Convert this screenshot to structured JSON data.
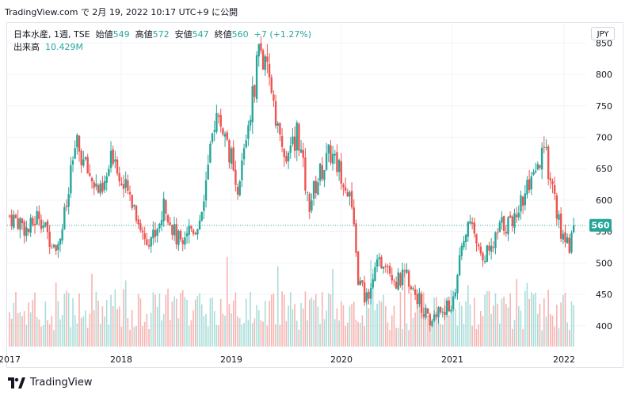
{
  "caption": "TradingView.com で 2月 19, 2022 10:17 UTC+9 に公開",
  "legend": {
    "symbol": "日本水産, 1週, TSE",
    "open_label": "始値",
    "open": "549",
    "high_label": "高値",
    "high": "572",
    "low_label": "安値",
    "low": "547",
    "close_label": "終値",
    "close": "560",
    "change": "+7 (+1.27%)",
    "volume_label": "出来高",
    "volume": "10.429M"
  },
  "currency_button": "JPY",
  "footer": {
    "brand": "TradingView",
    "logo_icon": "tradingview-logo-icon"
  },
  "colors": {
    "up": "#26a69a",
    "down": "#ef5350",
    "vol_up": "#a9ddd8",
    "vol_down": "#f7b3b1",
    "grid": "#f0f3fa",
    "axis_text": "#131722"
  },
  "chart_data": {
    "type": "candlestick",
    "interval": "weekly",
    "x_tick_labels": [
      "2017",
      "2018",
      "2019",
      "2020",
      "2021",
      "2022"
    ],
    "y_tick_labels": [
      400,
      450,
      500,
      550,
      600,
      650,
      700,
      750,
      800,
      850
    ],
    "ylim": [
      350,
      870
    ],
    "last_price": 560,
    "grid": true,
    "price_path_anchors": [
      [
        2016.98,
        575
      ],
      [
        2017.08,
        565
      ],
      [
        2017.15,
        550
      ],
      [
        2017.25,
        580
      ],
      [
        2017.32,
        545
      ],
      [
        2017.42,
        530
      ],
      [
        2017.5,
        590
      ],
      [
        2017.58,
        690
      ],
      [
        2017.68,
        650
      ],
      [
        2017.82,
        605
      ],
      [
        2017.93,
        680
      ],
      [
        2018.0,
        625
      ],
      [
        2018.1,
        600
      ],
      [
        2018.2,
        540
      ],
      [
        2018.3,
        545
      ],
      [
        2018.4,
        595
      ],
      [
        2018.5,
        535
      ],
      [
        2018.6,
        555
      ],
      [
        2018.7,
        560
      ],
      [
        2018.8,
        660
      ],
      [
        2018.85,
        735
      ],
      [
        2018.92,
        715
      ],
      [
        2019.0,
        665
      ],
      [
        2019.05,
        590
      ],
      [
        2019.12,
        690
      ],
      [
        2019.2,
        770
      ],
      [
        2019.25,
        850
      ],
      [
        2019.3,
        810
      ],
      [
        2019.38,
        770
      ],
      [
        2019.45,
        680
      ],
      [
        2019.52,
        660
      ],
      [
        2019.6,
        715
      ],
      [
        2019.7,
        590
      ],
      [
        2019.8,
        640
      ],
      [
        2019.9,
        675
      ],
      [
        2020.0,
        645
      ],
      [
        2020.08,
        610
      ],
      [
        2020.15,
        480
      ],
      [
        2020.22,
        440
      ],
      [
        2020.3,
        485
      ],
      [
        2020.4,
        510
      ],
      [
        2020.5,
        470
      ],
      [
        2020.6,
        480
      ],
      [
        2020.7,
        445
      ],
      [
        2020.8,
        405
      ],
      [
        2020.9,
        425
      ],
      [
        2021.0,
        430
      ],
      [
        2021.1,
        520
      ],
      [
        2021.15,
        565
      ],
      [
        2021.25,
        525
      ],
      [
        2021.35,
        510
      ],
      [
        2021.45,
        560
      ],
      [
        2021.55,
        565
      ],
      [
        2021.65,
        605
      ],
      [
        2021.72,
        620
      ],
      [
        2021.8,
        650
      ],
      [
        2021.85,
        680
      ],
      [
        2021.92,
        620
      ],
      [
        2022.0,
        545
      ],
      [
        2022.08,
        530
      ],
      [
        2022.12,
        560
      ]
    ]
  }
}
